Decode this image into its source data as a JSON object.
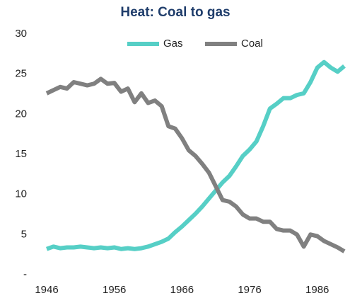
{
  "chart_data": {
    "type": "line",
    "title": "Heat: Coal to gas",
    "x": [
      1946,
      1947,
      1948,
      1949,
      1950,
      1951,
      1952,
      1953,
      1954,
      1955,
      1956,
      1957,
      1958,
      1959,
      1960,
      1961,
      1962,
      1963,
      1964,
      1965,
      1966,
      1967,
      1968,
      1969,
      1970,
      1971,
      1972,
      1973,
      1974,
      1975,
      1976,
      1977,
      1978,
      1979,
      1980,
      1981,
      1982,
      1983,
      1984,
      1985,
      1986,
      1987,
      1988,
      1989,
      1990
    ],
    "series": [
      {
        "name": "Gas",
        "color": "#56cfc6",
        "values": [
          3.2,
          3.5,
          3.3,
          3.4,
          3.4,
          3.5,
          3.4,
          3.3,
          3.4,
          3.3,
          3.4,
          3.2,
          3.3,
          3.2,
          3.3,
          3.5,
          3.8,
          4.1,
          4.5,
          5.3,
          6.0,
          6.8,
          7.6,
          8.5,
          9.5,
          10.5,
          11.5,
          12.3,
          13.5,
          14.8,
          15.6,
          16.6,
          18.5,
          20.7,
          21.3,
          22.0,
          22.0,
          22.4,
          22.6,
          24.0,
          25.8,
          26.5,
          25.8,
          25.3,
          26.0
        ]
      },
      {
        "name": "Coal",
        "color": "#808080",
        "values": [
          22.6,
          23.0,
          23.4,
          23.2,
          24.0,
          23.8,
          23.6,
          23.8,
          24.4,
          23.8,
          23.9,
          22.8,
          23.2,
          21.5,
          22.6,
          21.4,
          21.7,
          21.0,
          18.5,
          18.2,
          17.0,
          15.5,
          14.8,
          13.8,
          12.7,
          11.0,
          9.3,
          9.1,
          8.5,
          7.5,
          7.0,
          7.0,
          6.6,
          6.6,
          5.7,
          5.5,
          5.5,
          5.0,
          3.5,
          5.0,
          4.8,
          4.2,
          3.8,
          3.4,
          2.9
        ]
      }
    ],
    "xlim": [
      1946,
      1990
    ],
    "xticks": [
      1946,
      1956,
      1966,
      1976,
      1986
    ],
    "ylim": [
      0,
      30
    ],
    "yticks": [
      {
        "value": 0,
        "label": "-"
      },
      5,
      10,
      15,
      20,
      25,
      30
    ],
    "grid": false,
    "legend": "top"
  }
}
